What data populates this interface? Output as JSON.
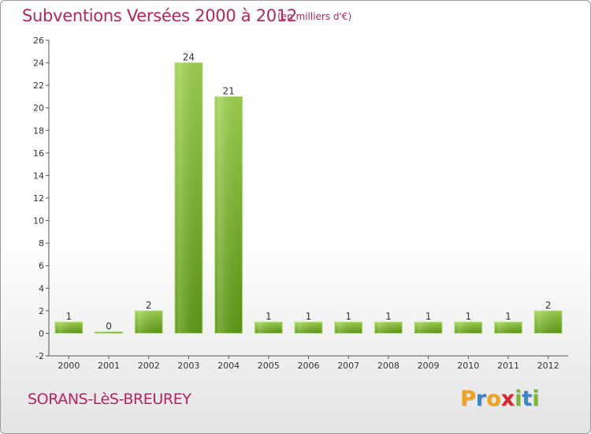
{
  "header": {
    "title": "Subventions Versées 2000 à 2012",
    "unit": "(en milliers d'€)"
  },
  "footer": {
    "commune": "SORANS-LèS-BREUREY",
    "logo_letters": [
      {
        "char": "P",
        "color": "#f0a21e"
      },
      {
        "char": "r",
        "color": "#3a86c8"
      },
      {
        "char": "o",
        "color": "#f0a21e"
      },
      {
        "char": "x",
        "color": "#d8262e"
      },
      {
        "char": "i",
        "color": "#7ab82f"
      },
      {
        "char": "t",
        "color": "#3a86c8"
      },
      {
        "char": "i",
        "color": "#7ab82f"
      }
    ]
  },
  "chart_data": {
    "type": "bar",
    "title": "Subventions Versées 2000 à 2012",
    "subtitle": "(en milliers d'€)",
    "categories": [
      "2000",
      "2001",
      "2002",
      "2003",
      "2004",
      "2005",
      "2006",
      "2007",
      "2008",
      "2009",
      "2010",
      "2011",
      "2012"
    ],
    "values": [
      1,
      0,
      2,
      24,
      21,
      1,
      1,
      1,
      1,
      1,
      1,
      1,
      2
    ],
    "ylim": [
      -2,
      26
    ],
    "yticks": [
      -2,
      0,
      2,
      4,
      6,
      8,
      10,
      12,
      14,
      16,
      18,
      20,
      22,
      24,
      26
    ],
    "xlabel": "",
    "ylabel": "",
    "grid": false,
    "legend": "none",
    "colors": {
      "bar_light": "#9fd24f",
      "bar_dark": "#5e9a14",
      "axis": "#555555",
      "title": "#b5255a"
    }
  }
}
